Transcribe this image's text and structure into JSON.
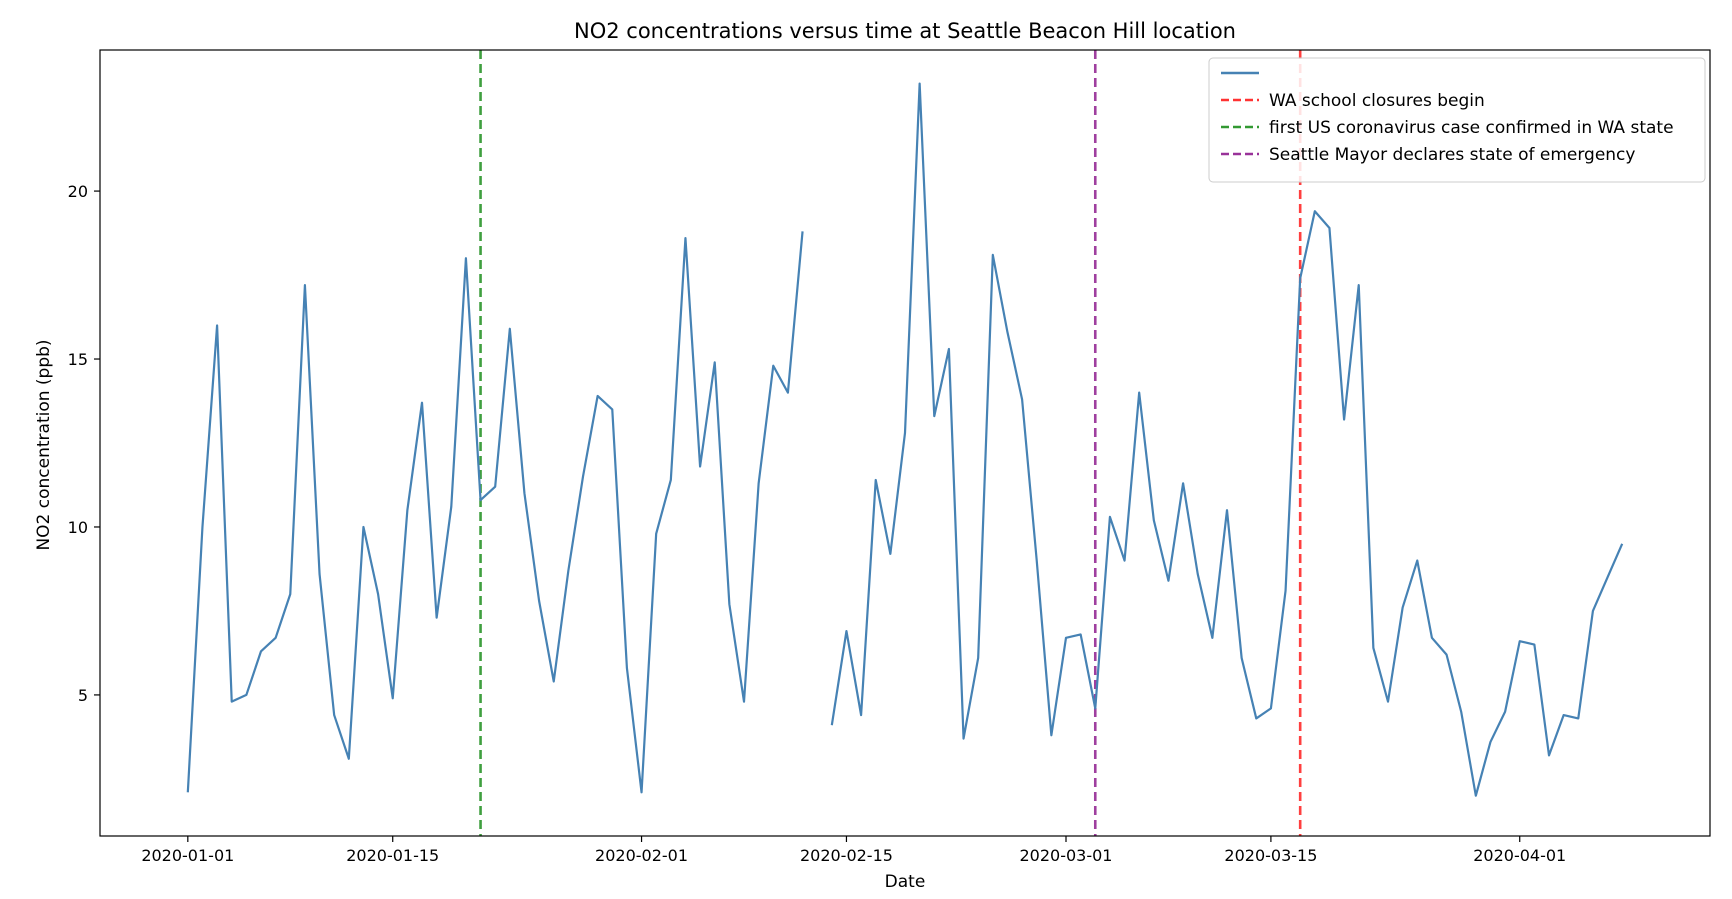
{
  "chart_data": {
    "type": "line",
    "title": "NO2 concentrations versus time at Seattle Beacon Hill location",
    "xlabel": "Date",
    "ylabel": "NO2 concentration (ppb)",
    "xlim": [
      "2019-12-26",
      "2020-04-14"
    ],
    "ylim": [
      0.8,
      24.2
    ],
    "x_ticks": [
      "2020-01-01",
      "2020-01-15",
      "2020-02-01",
      "2020-02-15",
      "2020-03-01",
      "2020-03-15",
      "2020-04-01"
    ],
    "y_ticks": [
      5,
      10,
      15,
      20
    ],
    "grid": false,
    "legend_position": "upper-right",
    "series": [
      {
        "name": "",
        "color": "#4682b4",
        "points": [
          [
            "2020-01-01",
            2.1
          ],
          [
            "2020-01-02",
            10.0
          ],
          [
            "2020-01-03",
            16.0
          ],
          [
            "2020-01-04",
            4.8
          ],
          [
            "2020-01-05",
            5.0
          ],
          [
            "2020-01-06",
            6.3
          ],
          [
            "2020-01-07",
            6.7
          ],
          [
            "2020-01-08",
            8.0
          ],
          [
            "2020-01-09",
            17.2
          ],
          [
            "2020-01-10",
            8.6
          ],
          [
            "2020-01-11",
            4.4
          ],
          [
            "2020-01-12",
            3.1
          ],
          [
            "2020-01-13",
            10.0
          ],
          [
            "2020-01-14",
            8.0
          ],
          [
            "2020-01-15",
            4.9
          ],
          [
            "2020-01-16",
            10.5
          ],
          [
            "2020-01-17",
            13.7
          ],
          [
            "2020-01-18",
            7.3
          ],
          [
            "2020-01-19",
            10.6
          ],
          [
            "2020-01-20",
            18.0
          ],
          [
            "2020-01-21",
            10.8
          ],
          [
            "2020-01-22",
            11.2
          ],
          [
            "2020-01-23",
            15.9
          ],
          [
            "2020-01-24",
            11.0
          ],
          [
            "2020-01-25",
            7.8
          ],
          [
            "2020-01-26",
            5.4
          ],
          [
            "2020-01-27",
            8.7
          ],
          [
            "2020-01-28",
            11.5
          ],
          [
            "2020-01-29",
            13.9
          ],
          [
            "2020-01-30",
            13.5
          ],
          [
            "2020-01-31",
            5.8
          ],
          [
            "2020-02-01",
            2.1
          ],
          [
            "2020-02-02",
            9.8
          ],
          [
            "2020-02-03",
            11.4
          ],
          [
            "2020-02-04",
            18.6
          ],
          [
            "2020-02-05",
            11.8
          ],
          [
            "2020-02-06",
            14.9
          ],
          [
            "2020-02-07",
            7.7
          ],
          [
            "2020-02-08",
            4.8
          ],
          [
            "2020-02-09",
            11.3
          ],
          [
            "2020-02-10",
            14.8
          ],
          [
            "2020-02-11",
            14.0
          ],
          [
            "2020-02-12",
            18.8
          ],
          [
            "2020-02-13",
            null
          ],
          [
            "2020-02-14",
            4.1
          ],
          [
            "2020-02-15",
            6.9
          ],
          [
            "2020-02-16",
            4.4
          ],
          [
            "2020-02-17",
            11.4
          ],
          [
            "2020-02-18",
            9.2
          ],
          [
            "2020-02-19",
            12.8
          ],
          [
            "2020-02-20",
            23.2
          ],
          [
            "2020-02-21",
            13.3
          ],
          [
            "2020-02-22",
            15.3
          ],
          [
            "2020-02-23",
            3.7
          ],
          [
            "2020-02-24",
            6.1
          ],
          [
            "2020-02-25",
            18.1
          ],
          [
            "2020-02-26",
            15.8
          ],
          [
            "2020-02-27",
            13.8
          ],
          [
            "2020-02-28",
            9.0
          ],
          [
            "2020-02-29",
            3.8
          ],
          [
            "2020-03-01",
            6.7
          ],
          [
            "2020-03-02",
            6.8
          ],
          [
            "2020-03-03",
            4.6
          ],
          [
            "2020-03-04",
            10.3
          ],
          [
            "2020-03-05",
            9.0
          ],
          [
            "2020-03-06",
            14.0
          ],
          [
            "2020-03-07",
            10.2
          ],
          [
            "2020-03-08",
            8.4
          ],
          [
            "2020-03-09",
            11.3
          ],
          [
            "2020-03-10",
            8.6
          ],
          [
            "2020-03-11",
            6.7
          ],
          [
            "2020-03-12",
            10.5
          ],
          [
            "2020-03-13",
            6.1
          ],
          [
            "2020-03-14",
            4.3
          ],
          [
            "2020-03-15",
            4.6
          ],
          [
            "2020-03-16",
            8.1
          ],
          [
            "2020-03-17",
            17.4
          ],
          [
            "2020-03-18",
            19.4
          ],
          [
            "2020-03-19",
            18.9
          ],
          [
            "2020-03-20",
            13.2
          ],
          [
            "2020-03-21",
            17.2
          ],
          [
            "2020-03-22",
            6.4
          ],
          [
            "2020-03-23",
            4.8
          ],
          [
            "2020-03-24",
            7.6
          ],
          [
            "2020-03-25",
            9.0
          ],
          [
            "2020-03-26",
            6.7
          ],
          [
            "2020-03-27",
            6.2
          ],
          [
            "2020-03-28",
            4.5
          ],
          [
            "2020-03-29",
            2.0
          ],
          [
            "2020-03-30",
            3.6
          ],
          [
            "2020-03-31",
            4.5
          ],
          [
            "2020-04-01",
            6.6
          ],
          [
            "2020-04-02",
            6.5
          ],
          [
            "2020-04-03",
            3.2
          ],
          [
            "2020-04-04",
            4.4
          ],
          [
            "2020-04-05",
            4.3
          ],
          [
            "2020-04-06",
            7.5
          ],
          [
            "2020-04-07",
            8.5
          ],
          [
            "2020-04-08",
            9.5
          ]
        ]
      }
    ],
    "vlines": [
      {
        "name": "WA school closures begin",
        "date": "2020-03-17",
        "color": "#ff0000"
      },
      {
        "name": "first US coronavirus case confirmed in WA state",
        "date": "2020-01-21",
        "color": "#008000"
      },
      {
        "name": "Seattle Mayor declares state of emergency",
        "date": "2020-03-03",
        "color": "#800080"
      }
    ]
  }
}
